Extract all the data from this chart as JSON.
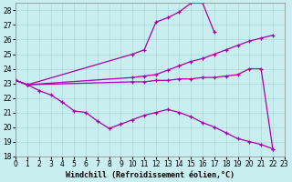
{
  "xlabel": "Windchill (Refroidissement éolien,°C)",
  "background_color": "#c8eef0",
  "grid_color": "#aed8da",
  "line_color": "#aa00aa",
  "marker": "+",
  "ylim": [
    18,
    28.5
  ],
  "xlim": [
    0,
    23
  ],
  "yticks": [
    18,
    19,
    20,
    21,
    22,
    23,
    24,
    25,
    26,
    27,
    28
  ],
  "xticks": [
    0,
    1,
    2,
    3,
    4,
    5,
    6,
    7,
    8,
    9,
    10,
    11,
    12,
    13,
    14,
    15,
    16,
    17,
    18,
    19,
    20,
    21,
    22,
    23
  ],
  "line1_x": [
    0,
    1,
    10,
    11,
    12,
    13,
    14,
    15,
    16,
    17
  ],
  "line1_y": [
    23.2,
    22.9,
    25.0,
    25.3,
    27.2,
    27.5,
    27.9,
    28.5,
    28.5,
    26.5
  ],
  "line2_x": [
    0,
    1,
    10,
    11,
    12,
    13,
    14,
    15,
    16,
    17,
    18,
    19,
    20,
    21,
    22
  ],
  "line2_y": [
    23.2,
    22.9,
    23.4,
    23.5,
    23.6,
    23.9,
    24.2,
    24.5,
    24.7,
    25.0,
    25.3,
    25.6,
    25.9,
    26.1,
    26.3
  ],
  "line3_x": [
    0,
    1,
    10,
    11,
    12,
    13,
    14,
    15,
    16,
    17,
    18,
    19,
    20,
    21,
    22
  ],
  "line3_y": [
    23.2,
    22.9,
    23.1,
    23.1,
    23.2,
    23.2,
    23.3,
    23.3,
    23.4,
    23.4,
    23.5,
    23.6,
    24.0,
    24.0,
    18.5
  ],
  "line4_x": [
    0,
    1,
    2,
    3,
    4,
    5,
    6,
    7,
    8,
    9,
    10,
    11,
    12,
    13,
    14,
    15,
    16,
    17,
    18,
    19,
    20,
    21,
    22
  ],
  "line4_y": [
    23.2,
    22.9,
    22.5,
    22.2,
    21.7,
    21.1,
    21.0,
    20.4,
    19.9,
    20.2,
    20.5,
    20.8,
    21.0,
    21.2,
    21.0,
    20.7,
    20.3,
    20.0,
    19.6,
    19.2,
    19.0,
    18.8,
    18.5
  ],
  "fontsize_tick": 5.5,
  "fontsize_label": 6.0
}
